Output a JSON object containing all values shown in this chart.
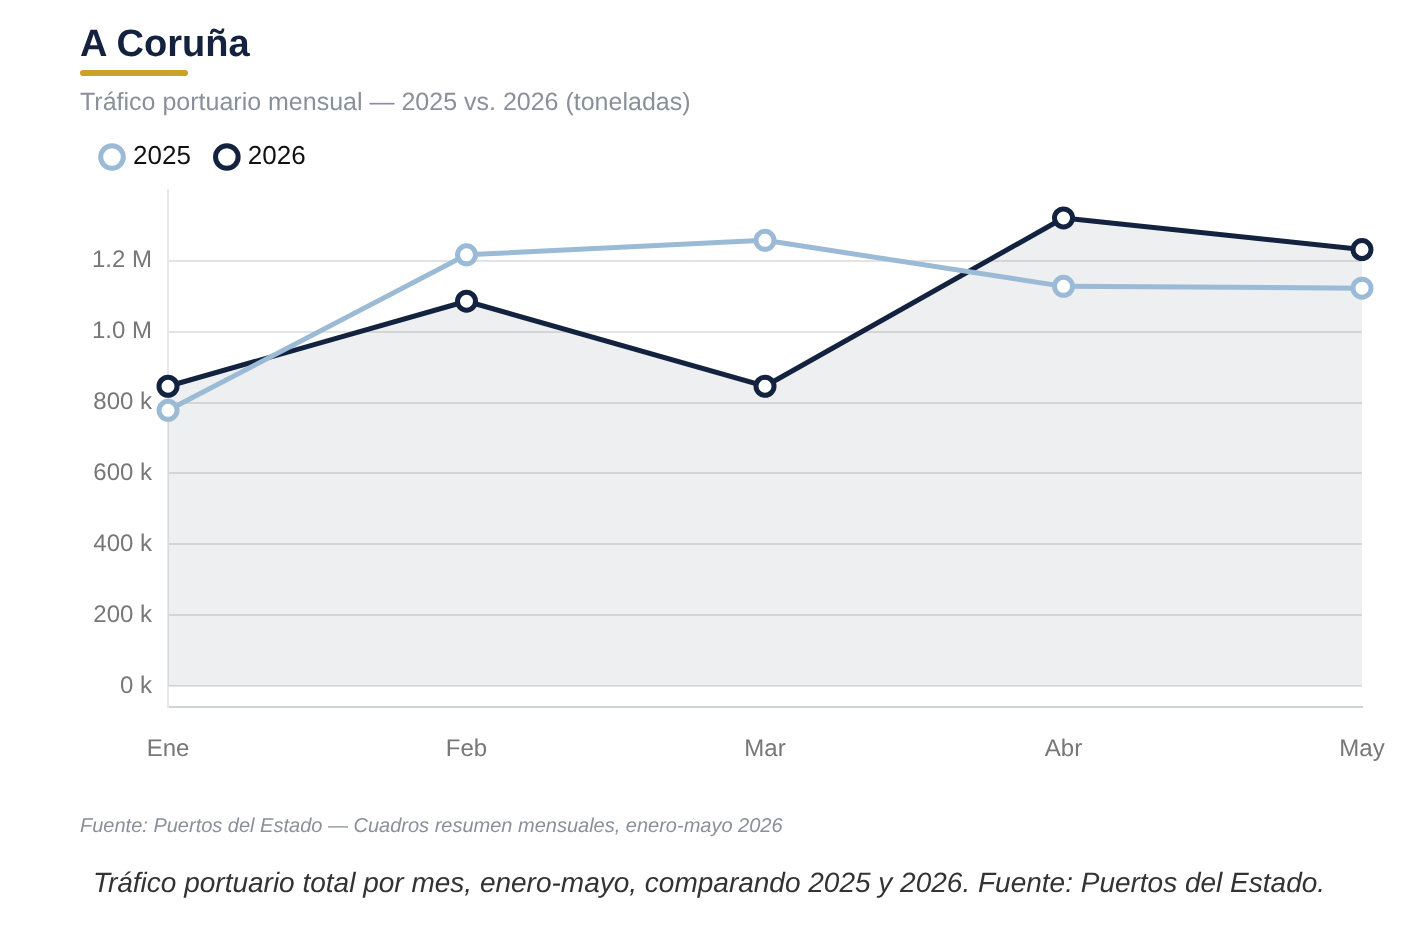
{
  "chart_data": {
    "type": "line",
    "title": "A Coruña",
    "subtitle": "Tráfico portuario mensual — 2025 vs. 2026 (toneladas)",
    "categories": [
      "Ene",
      "Feb",
      "Mar",
      "Abr",
      "May"
    ],
    "series": [
      {
        "name": "2025",
        "color": "#9bbad6",
        "values": [
          778000,
          1217000,
          1258000,
          1128000,
          1123000
        ]
      },
      {
        "name": "2026",
        "type": "area",
        "color": "#13233f",
        "values": [
          846000,
          1086000,
          846000,
          1321000,
          1232000
        ]
      }
    ],
    "yticks": [
      {
        "value": 0,
        "label": "0 k"
      },
      {
        "value": 200000,
        "label": "200 k"
      },
      {
        "value": 400000,
        "label": "400 k"
      },
      {
        "value": 600000,
        "label": "600 k"
      },
      {
        "value": 800000,
        "label": "800 k"
      },
      {
        "value": 1000000,
        "label": "1.0 M"
      },
      {
        "value": 1200000,
        "label": "1.2 M"
      }
    ],
    "ylim": [
      -60000,
      1400000
    ],
    "grid": "y",
    "legend": "top left",
    "marker": "circle",
    "line_style": "solid",
    "annotations": [
      "Fuente: Puertos del Estado — Cuadros resumen mensuales, enero-mayo 2026",
      "Tráfico portuario total por mes, enero-mayo, comparando 2025 y 2026. Fuente: Puertos del Estado."
    ]
  }
}
